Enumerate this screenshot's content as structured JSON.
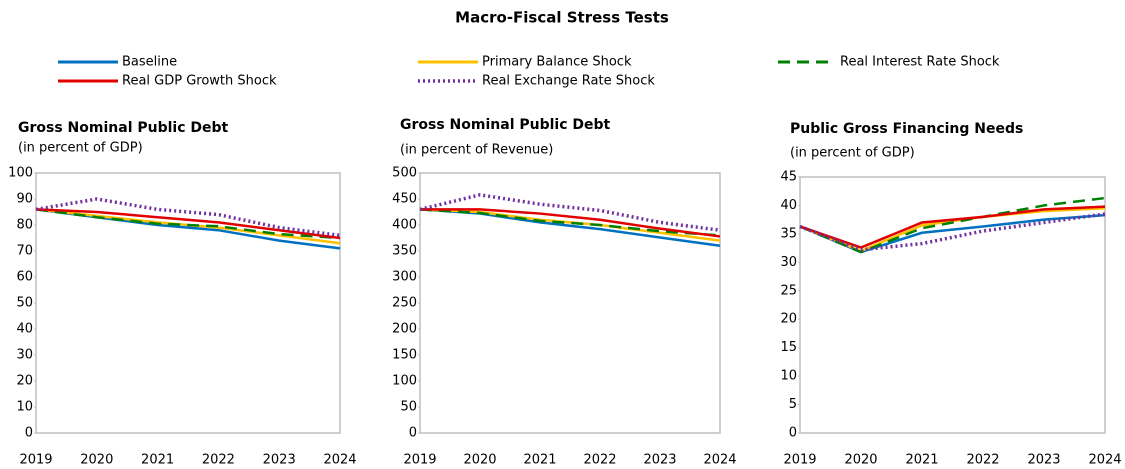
{
  "title": "Macro-Fiscal Stress Tests",
  "chart_data": [
    {
      "type": "line",
      "title": "Gross Nominal Public Debt",
      "subtitle": "(in percent of GDP)",
      "categories": [
        "2019",
        "2020",
        "2021",
        "2022",
        "2023",
        "2024"
      ],
      "ylim": [
        0,
        100
      ],
      "yticks": [
        0,
        10,
        20,
        30,
        40,
        50,
        60,
        70,
        80,
        90,
        100
      ],
      "series": [
        {
          "name": "Baseline",
          "color": "#0070c0",
          "dash": "solid",
          "values": [
            86,
            83,
            80,
            78,
            74,
            71
          ]
        },
        {
          "name": "Real GDP Growth Shock",
          "color": "#e00000",
          "dash": "solid",
          "values": [
            86,
            85,
            83,
            81,
            78,
            75
          ]
        },
        {
          "name": "Primary Balance Shock",
          "color": "#ffc000",
          "dash": "solid",
          "values": [
            86,
            83.5,
            81,
            79,
            76,
            73
          ]
        },
        {
          "name": "Real Exchange Rate Shock",
          "color": "#7030a0",
          "dash": "dotted",
          "values": [
            86,
            90,
            86,
            84,
            79,
            76
          ]
        },
        {
          "name": "Real Interest Rate Shock",
          "color": "#008000",
          "dash": "dashed",
          "values": [
            86,
            83,
            80.5,
            79.5,
            76.5,
            75
          ]
        }
      ]
    },
    {
      "type": "line",
      "title": "Gross Nominal Public Debt",
      "subtitle": "(in percent of Revenue)",
      "categories": [
        "2019",
        "2020",
        "2021",
        "2022",
        "2023",
        "2024"
      ],
      "ylim": [
        0,
        500
      ],
      "yticks": [
        0,
        50,
        100,
        150,
        200,
        250,
        300,
        350,
        400,
        450,
        500
      ],
      "series": [
        {
          "color": "#0070c0",
          "dash": "solid",
          "values": [
            430,
            422,
            405,
            392,
            376,
            360
          ]
        },
        {
          "color": "#e00000",
          "dash": "solid",
          "values": [
            430,
            430,
            422,
            410,
            393,
            378
          ]
        },
        {
          "color": "#ffc000",
          "dash": "solid",
          "values": [
            430,
            425,
            410,
            400,
            385,
            370
          ]
        },
        {
          "color": "#7030a0",
          "dash": "dotted",
          "values": [
            430,
            458,
            440,
            428,
            405,
            390
          ]
        },
        {
          "color": "#008000",
          "dash": "dashed",
          "values": [
            430,
            423,
            408,
            400,
            388,
            380
          ]
        }
      ]
    },
    {
      "type": "line",
      "title": "Public Gross Financing Needs",
      "subtitle": "(in percent of GDP)",
      "categories": [
        "2019",
        "2020",
        "2021",
        "2022",
        "2023",
        "2024"
      ],
      "ylim": [
        0,
        45
      ],
      "yticks": [
        0,
        5,
        10,
        15,
        20,
        25,
        30,
        35,
        40,
        45
      ],
      "series": [
        {
          "color": "#0070c0",
          "dash": "solid",
          "values": [
            36.3,
            31.8,
            35.2,
            36.3,
            37.5,
            38.3
          ]
        },
        {
          "color": "#e00000",
          "dash": "solid",
          "values": [
            36.3,
            32.6,
            37,
            38,
            39.3,
            39.8
          ]
        },
        {
          "color": "#ffc000",
          "dash": "solid",
          "values": [
            36.3,
            32,
            36.5,
            38,
            39,
            39.5
          ]
        },
        {
          "color": "#7030a0",
          "dash": "dotted",
          "values": [
            36.3,
            32.2,
            33.3,
            35.5,
            37,
            38.5
          ]
        },
        {
          "color": "#008000",
          "dash": "dashed",
          "values": [
            36.3,
            31.8,
            36,
            38,
            40,
            41.3
          ]
        }
      ]
    }
  ]
}
